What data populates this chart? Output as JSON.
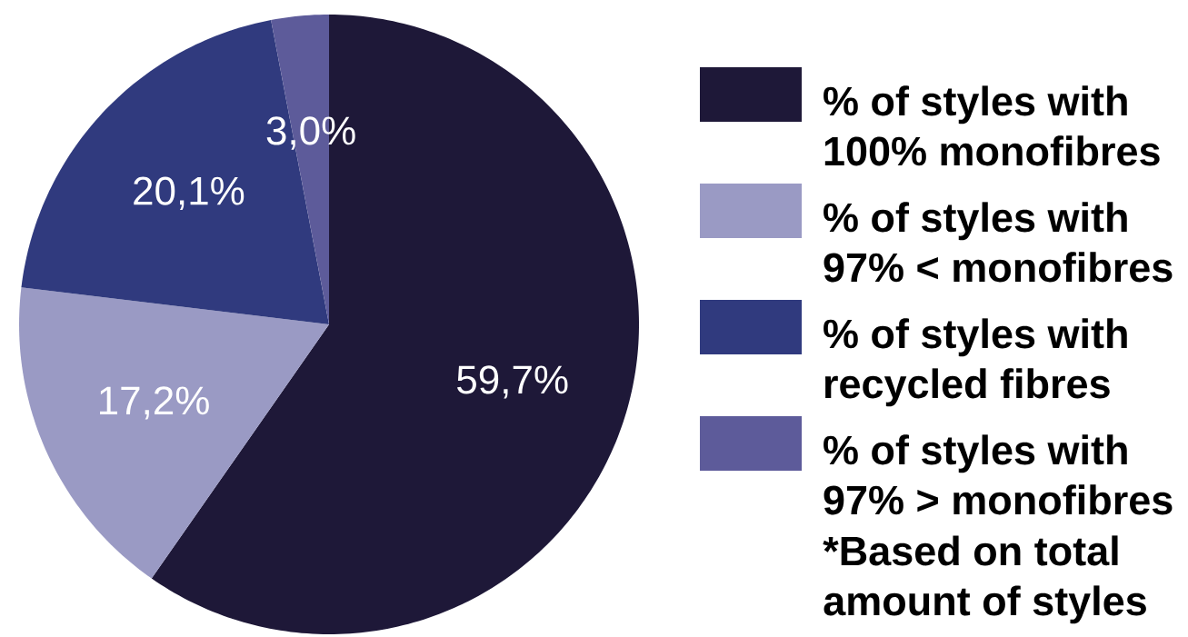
{
  "chart_data": {
    "type": "pie",
    "categories": [
      "% of styles with 100% monofibres",
      "% of styles with 97% < monofibres",
      "% of styles with recycled fibres",
      "% of styles with 97% > monofibres"
    ],
    "values": [
      59.7,
      17.2,
      20.1,
      3.0
    ],
    "colors": [
      "#1e1838",
      "#9a9ac4",
      "#303a7e",
      "#5d5b9a"
    ],
    "value_labels": [
      "59,7%",
      "17,2%",
      "20,1%",
      "3,0%"
    ],
    "legend": "right",
    "annotations": [
      "*Based on total amount of styles"
    ]
  }
}
